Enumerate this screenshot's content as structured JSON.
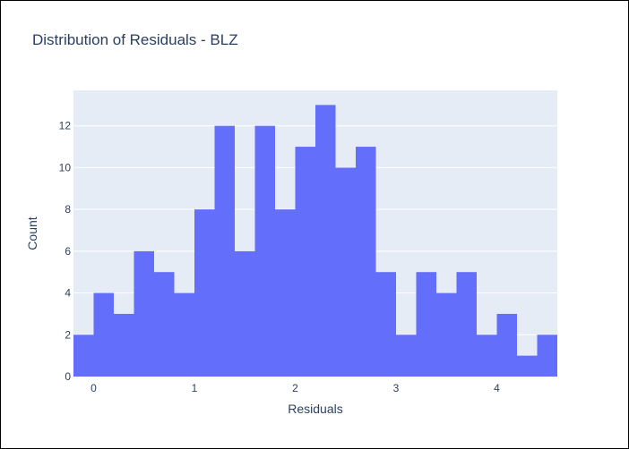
{
  "chart_data": {
    "type": "bar",
    "title": "Distribution of Residuals - BLZ",
    "xlabel": "Residuals",
    "ylabel": "Count",
    "bin_width": 0.2,
    "bin_start": -0.2,
    "xlim": [
      -0.2,
      4.6
    ],
    "ylim": [
      0,
      13.7
    ],
    "x_ticks": [
      0,
      1,
      2,
      3,
      4
    ],
    "y_ticks": [
      0,
      2,
      4,
      6,
      8,
      10,
      12
    ],
    "bins": [
      -0.1,
      0.1,
      0.3,
      0.5,
      0.7,
      0.9,
      1.1,
      1.3,
      1.5,
      1.7,
      1.9,
      2.1,
      2.3,
      2.5,
      2.7,
      2.9,
      3.1,
      3.3,
      3.5,
      3.7,
      3.9,
      4.1,
      4.3,
      4.5
    ],
    "values": [
      2,
      4,
      3,
      6,
      5,
      4,
      8,
      12,
      6,
      12,
      8,
      11,
      13,
      10,
      11,
      5,
      2,
      5,
      4,
      5,
      2,
      3,
      1,
      2
    ],
    "grid": true,
    "colors": {
      "bar": "#636efa",
      "plot_bg": "#e5ecf6",
      "grid": "#ffffff",
      "text": "#2a3f5f"
    }
  }
}
